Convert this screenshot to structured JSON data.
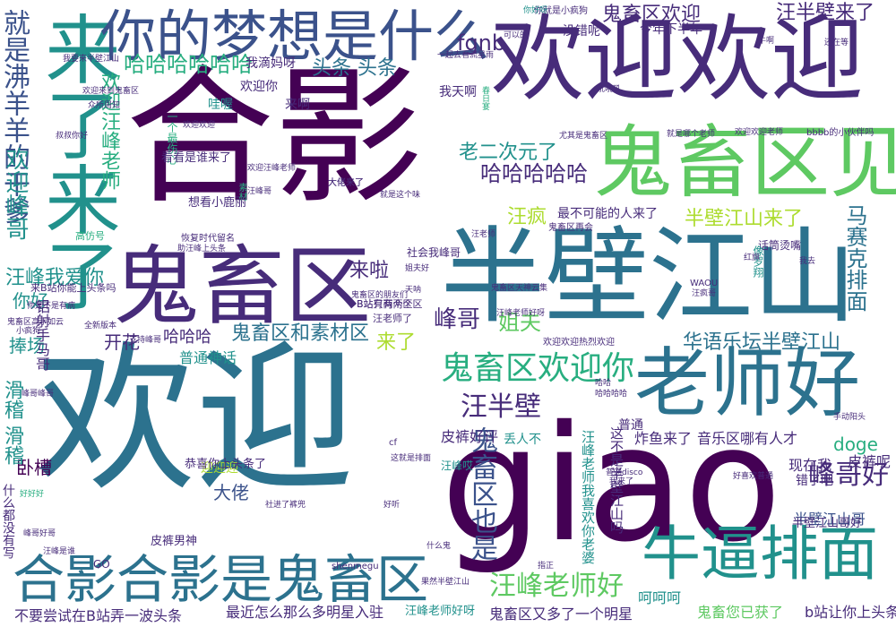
{
  "colors": {
    "background": "#ffffff",
    "purple": "#440154",
    "indigo": "#472c7a",
    "blue": "#3b528b",
    "steel": "#2c728e",
    "teal": "#21918c",
    "green": "#28ae80",
    "lime": "#5ec962",
    "lightgreen": "#addc30"
  },
  "words": [
    {
      "text": "欢迎"
    },
    {
      "text": "giao"
    },
    {
      "text": "合影"
    },
    {
      "text": "半壁江山"
    },
    {
      "text": "欢迎欢迎"
    },
    {
      "text": "鬼畜区"
    },
    {
      "text": "鬼畜区见"
    },
    {
      "text": "老师好"
    },
    {
      "text": "来了来了"
    },
    {
      "text": "你的梦想是什么"
    },
    {
      "text": "合影合影是鬼畜区"
    },
    {
      "text": "牛逼排面"
    },
    {
      "text": "鬼畜区欢迎你"
    },
    {
      "text": "汪峰老师好"
    },
    {
      "text": "峰哥好"
    },
    {
      "text": "就是沸羊羊的干爹"
    },
    {
      "text": "欢迎峰哥"
    },
    {
      "text": "汪峰我爱你"
    },
    {
      "text": "欢迎汪峰老师"
    },
    {
      "text": "鬼畜区也是"
    },
    {
      "text": "汪半壁"
    },
    {
      "text": "鬼畜区欢迎"
    },
    {
      "text": "汪半壁来了"
    },
    {
      "text": "马赛克排面"
    },
    {
      "text": "华语乐坛半壁江山"
    },
    {
      "text": "鬼畜区和素材区"
    },
    {
      "text": "哈哈哈哈哈哈"
    },
    {
      "text": "哈哈哈哈哈"
    },
    {
      "text": "老二次元了"
    },
    {
      "text": "半壁江山来了"
    },
    {
      "text": "fgnb"
    },
    {
      "text": "头条 头条"
    },
    {
      "text": "来啦"
    },
    {
      "text": "峰哥"
    },
    {
      "text": "姐夫"
    },
    {
      "text": "来了"
    },
    {
      "text": "你好"
    },
    {
      "text": "汪疯"
    },
    {
      "text": "doge"
    },
    {
      "text": "卧槽"
    },
    {
      "text": "捧场"
    },
    {
      "text": "开花"
    },
    {
      "text": "大佬"
    },
    {
      "text": "皮裤好评"
    },
    {
      "text": "炸鱼来了"
    },
    {
      "text": "音乐区哪有人才"
    },
    {
      "text": "皮裤呢"
    },
    {
      "text": "现在我"
    },
    {
      "text": "鬼畜您已获了"
    },
    {
      "text": "最近怎么那么多明星入驻"
    },
    {
      "text": "不要尝试在B站弄一波头条"
    },
    {
      "text": "汪峰老师好呀"
    },
    {
      "text": "b站让你上头条"
    },
    {
      "text": "呵呵呵"
    },
    {
      "text": "滑稽 滑稽"
    },
    {
      "text": "哈哈哈"
    },
    {
      "text": "普通神话"
    },
    {
      "text": "鬼畜区又多了一个明星"
    },
    {
      "text": "汪峰老师我喜欢你老婆"
    },
    {
      "text": "这不是半壁江山吗"
    },
    {
      "text": "半壁江山哥"
    },
    {
      "text": "最不可能的人来了"
    },
    {
      "text": "今年下半年"
    },
    {
      "text": "没错呢"
    },
    {
      "text": "我滴妈呀"
    },
    {
      "text": "欢迎你"
    },
    {
      "text": "来啊"
    },
    {
      "text": "哇喔"
    },
    {
      "text": "我天啊"
    },
    {
      "text": "一个最伤心"
    },
    {
      "text": "丢人不"
    },
    {
      "text": "错了吧"
    },
    {
      "text": "迎迎迎"
    },
    {
      "text": "恭喜你上头条了"
    },
    {
      "text": "皮裤男神"
    },
    {
      "text": "社会我峰哥"
    },
    {
      "text": "什么都没有写"
    },
    {
      "text": "铝射手马哥"
    },
    {
      "text": "来B站你能上头条吗"
    },
    {
      "text": "高仿号"
    },
    {
      "text": "看看是谁来了"
    },
    {
      "text": "你就是小疯狗"
    },
    {
      "text": "大佬来了"
    },
    {
      "text": "普通"
    },
    {
      "text": "话筒烫嘴"
    },
    {
      "text": "汪峰哎"
    },
    {
      "text": "半壁江山哥好"
    },
    {
      "text": "GO"
    },
    {
      "text": "shenmegu"
    },
    {
      "text": "bbbb的小伙伴吗"
    },
    {
      "text": "欢迎欢迎老师"
    },
    {
      "text": "尤其是鬼畜区"
    },
    {
      "text": "想看小鹿丽"
    },
    {
      "text": "汪老师了"
    },
    {
      "text": "B站只有两个区"
    },
    {
      "text": "鬼畜区再会"
    },
    {
      "text": "手动阳头"
    },
    {
      "text": "好好好"
    },
    {
      "text": "WAOU"
    },
    {
      "text": "像罗翔"
    },
    {
      "text": "汪疯哥"
    },
    {
      "text": "哈哈哈哈"
    },
    {
      "text": "普通disco"
    },
    {
      "text": "欢迎欢迎热烈欢迎"
    },
    {
      "text": "大佬来了"
    },
    {
      "text": "什么鬼"
    },
    {
      "text": "红旗"
    },
    {
      "text": "我去"
    },
    {
      "text": "恢复时代留名"
    },
    {
      "text": "助汪峰上头条"
    },
    {
      "text": "叔叔你好"
    },
    {
      "text": "天呐"
    },
    {
      "text": "可以的"
    },
    {
      "text": "你好呀"
    },
    {
      "text": "吼吼吼"
    },
    {
      "text": "汪峰老师好呀"
    },
    {
      "text": "鬼畜区天神云集"
    },
    {
      "text": "B站有两个区"
    },
    {
      "text": "cf"
    },
    {
      "text": "果然半壁江山"
    },
    {
      "text": "素材"
    },
    {
      "text": "欢迎汪峰老师"
    },
    {
      "text": "就是哪个老师"
    },
    {
      "text": "你是不是有病"
    },
    {
      "text": "我要来半壁江山"
    },
    {
      "text": "一起去看流星雨"
    },
    {
      "text": "指正"
    },
    {
      "text": "好喜欢普通"
    },
    {
      "text": "还在等"
    },
    {
      "text": "欢迎欢迎"
    },
    {
      "text": "姐夫好"
    },
    {
      "text": "汪峰是谁"
    },
    {
      "text": "峰哥峰哥"
    },
    {
      "text": "峰哥好哥"
    },
    {
      "text": "好听"
    },
    {
      "text": "鬼畜区高手如云"
    },
    {
      "text": "小疯狗"
    },
    {
      "text": "全新版本"
    },
    {
      "text": "支持峰哥"
    },
    {
      "text": "鬼畜区的朋友们"
    },
    {
      "text": "欢迎来到鬼畜区"
    },
    {
      "text": "社进了裤兜"
    },
    {
      "text": "春日宴"
    },
    {
      "text": "众所周知"
    },
    {
      "text": "汪峰哥"
    },
    {
      "text": "就是这个味"
    },
    {
      "text": "哈哈"
    },
    {
      "text": "牛啊"
    },
    {
      "text": "我来了"
    },
    {
      "text": "这就是排面"
    },
    {
      "text": "汪老师"
    }
  ]
}
